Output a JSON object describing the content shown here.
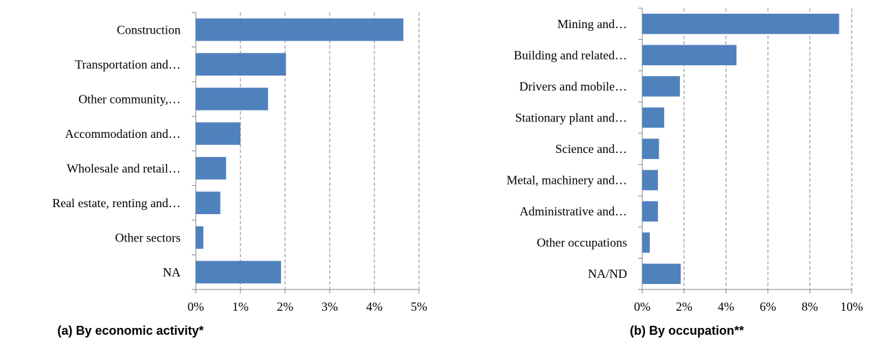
{
  "chart_data": [
    {
      "type": "bar",
      "orientation": "horizontal",
      "title": "(a) By economic activity*",
      "categories": [
        "Construction",
        "Transportation and…",
        "Other community,…",
        "Accommodation and…",
        "Wholesale and retail…",
        "Real estate, renting and…",
        "Other sectors",
        "NA"
      ],
      "values": [
        4.65,
        2.02,
        1.62,
        1.0,
        0.68,
        0.55,
        0.17,
        1.91
      ],
      "color": "#4f81bd",
      "xlim": [
        0,
        5
      ],
      "xticks": [
        {
          "value": 0,
          "label": "0%"
        },
        {
          "value": 1,
          "label": "1%"
        },
        {
          "value": 2,
          "label": "2%"
        },
        {
          "value": 3,
          "label": "3%"
        },
        {
          "value": 4,
          "label": "4%"
        },
        {
          "value": 5,
          "label": "5%"
        }
      ],
      "grid": true
    },
    {
      "type": "bar",
      "orientation": "horizontal",
      "title": "(b) By occupation**",
      "categories": [
        "Mining and…",
        "Building and related…",
        "Drivers and mobile…",
        "Stationary plant and…",
        "Science and…",
        "Metal, machinery and…",
        "Administrative and…",
        "Other occupations",
        "NA/ND"
      ],
      "values": [
        9.4,
        4.5,
        1.8,
        1.05,
        0.8,
        0.75,
        0.75,
        0.36,
        1.84
      ],
      "color": "#4f81bd",
      "xlim": [
        0,
        10
      ],
      "xticks": [
        {
          "value": 0,
          "label": "0%"
        },
        {
          "value": 2,
          "label": "2%"
        },
        {
          "value": 4,
          "label": "4%"
        },
        {
          "value": 6,
          "label": "6%"
        },
        {
          "value": 8,
          "label": "8%"
        },
        {
          "value": 10,
          "label": "10%"
        }
      ],
      "grid": true
    }
  ]
}
